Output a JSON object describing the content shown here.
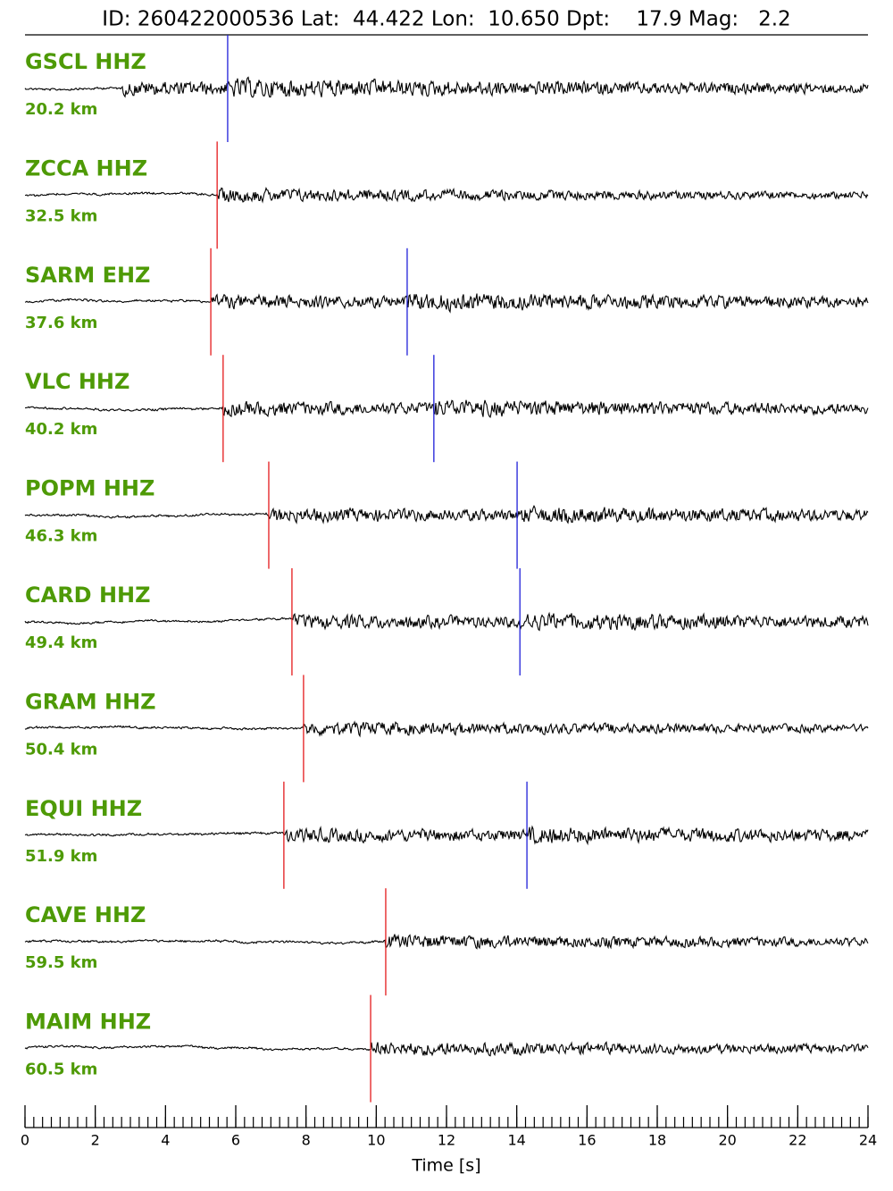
{
  "chart_data": {
    "type": "seismogram",
    "title": "ID: 260422000536 Lat:  44.422 Lon:  10.650 Dpt:    17.9 Mag:   2.2",
    "xlabel": "Time [s]",
    "xlim": [
      0,
      24
    ],
    "xticks": [
      0,
      2,
      4,
      6,
      8,
      10,
      12,
      14,
      16,
      18,
      20,
      22,
      24
    ],
    "label_color": "#4e9a06",
    "p_color": "#e41a1c",
    "s_color": "#1f1fd8",
    "trace_color": "#000000",
    "traces": [
      {
        "station": "GSCL HHZ",
        "distance": "20.2 km",
        "p_pick": null,
        "s_pick": 5.77
      },
      {
        "station": "ZCCA HHZ",
        "distance": "32.5 km",
        "p_pick": 5.47,
        "s_pick": null
      },
      {
        "station": "SARM EHZ",
        "distance": "37.6 km",
        "p_pick": 5.29,
        "s_pick": 10.88
      },
      {
        "station": "VLC HHZ",
        "distance": "40.2 km",
        "p_pick": 5.64,
        "s_pick": 11.64
      },
      {
        "station": "POPM HHZ",
        "distance": "46.3 km",
        "p_pick": 6.94,
        "s_pick": 14.01
      },
      {
        "station": "CARD HHZ",
        "distance": "49.4 km",
        "p_pick": 7.6,
        "s_pick": 14.09
      },
      {
        "station": "GRAM HHZ",
        "distance": "50.4 km",
        "p_pick": 7.93,
        "s_pick": null
      },
      {
        "station": "EQUI HHZ",
        "distance": "51.9 km",
        "p_pick": 7.37,
        "s_pick": 14.29
      },
      {
        "station": "CAVE HHZ",
        "distance": "59.5 km",
        "p_pick": 10.27,
        "s_pick": null
      },
      {
        "station": "MAIM HHZ",
        "distance": "60.5 km",
        "p_pick": 9.84,
        "s_pick": null
      }
    ]
  }
}
